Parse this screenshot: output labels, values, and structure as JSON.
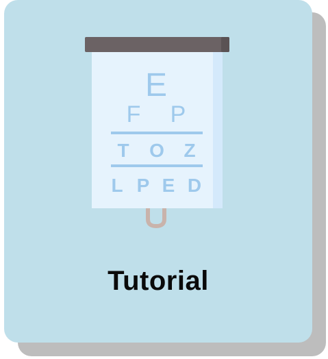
{
  "card": {
    "label": "Tutorial",
    "icon": "eye-chart-icon",
    "background_color": "#bfdfea",
    "shadow_color": "#bdbdbd"
  },
  "eye_chart": {
    "rows": [
      [
        "E"
      ],
      [
        "F",
        "P"
      ],
      [
        "T",
        "O",
        "Z"
      ],
      [
        "L",
        "P",
        "E",
        "D"
      ]
    ],
    "letter_color": "#9ec9ec",
    "panel_color": "#e6f3fd",
    "bar_color": "#6b6264"
  }
}
